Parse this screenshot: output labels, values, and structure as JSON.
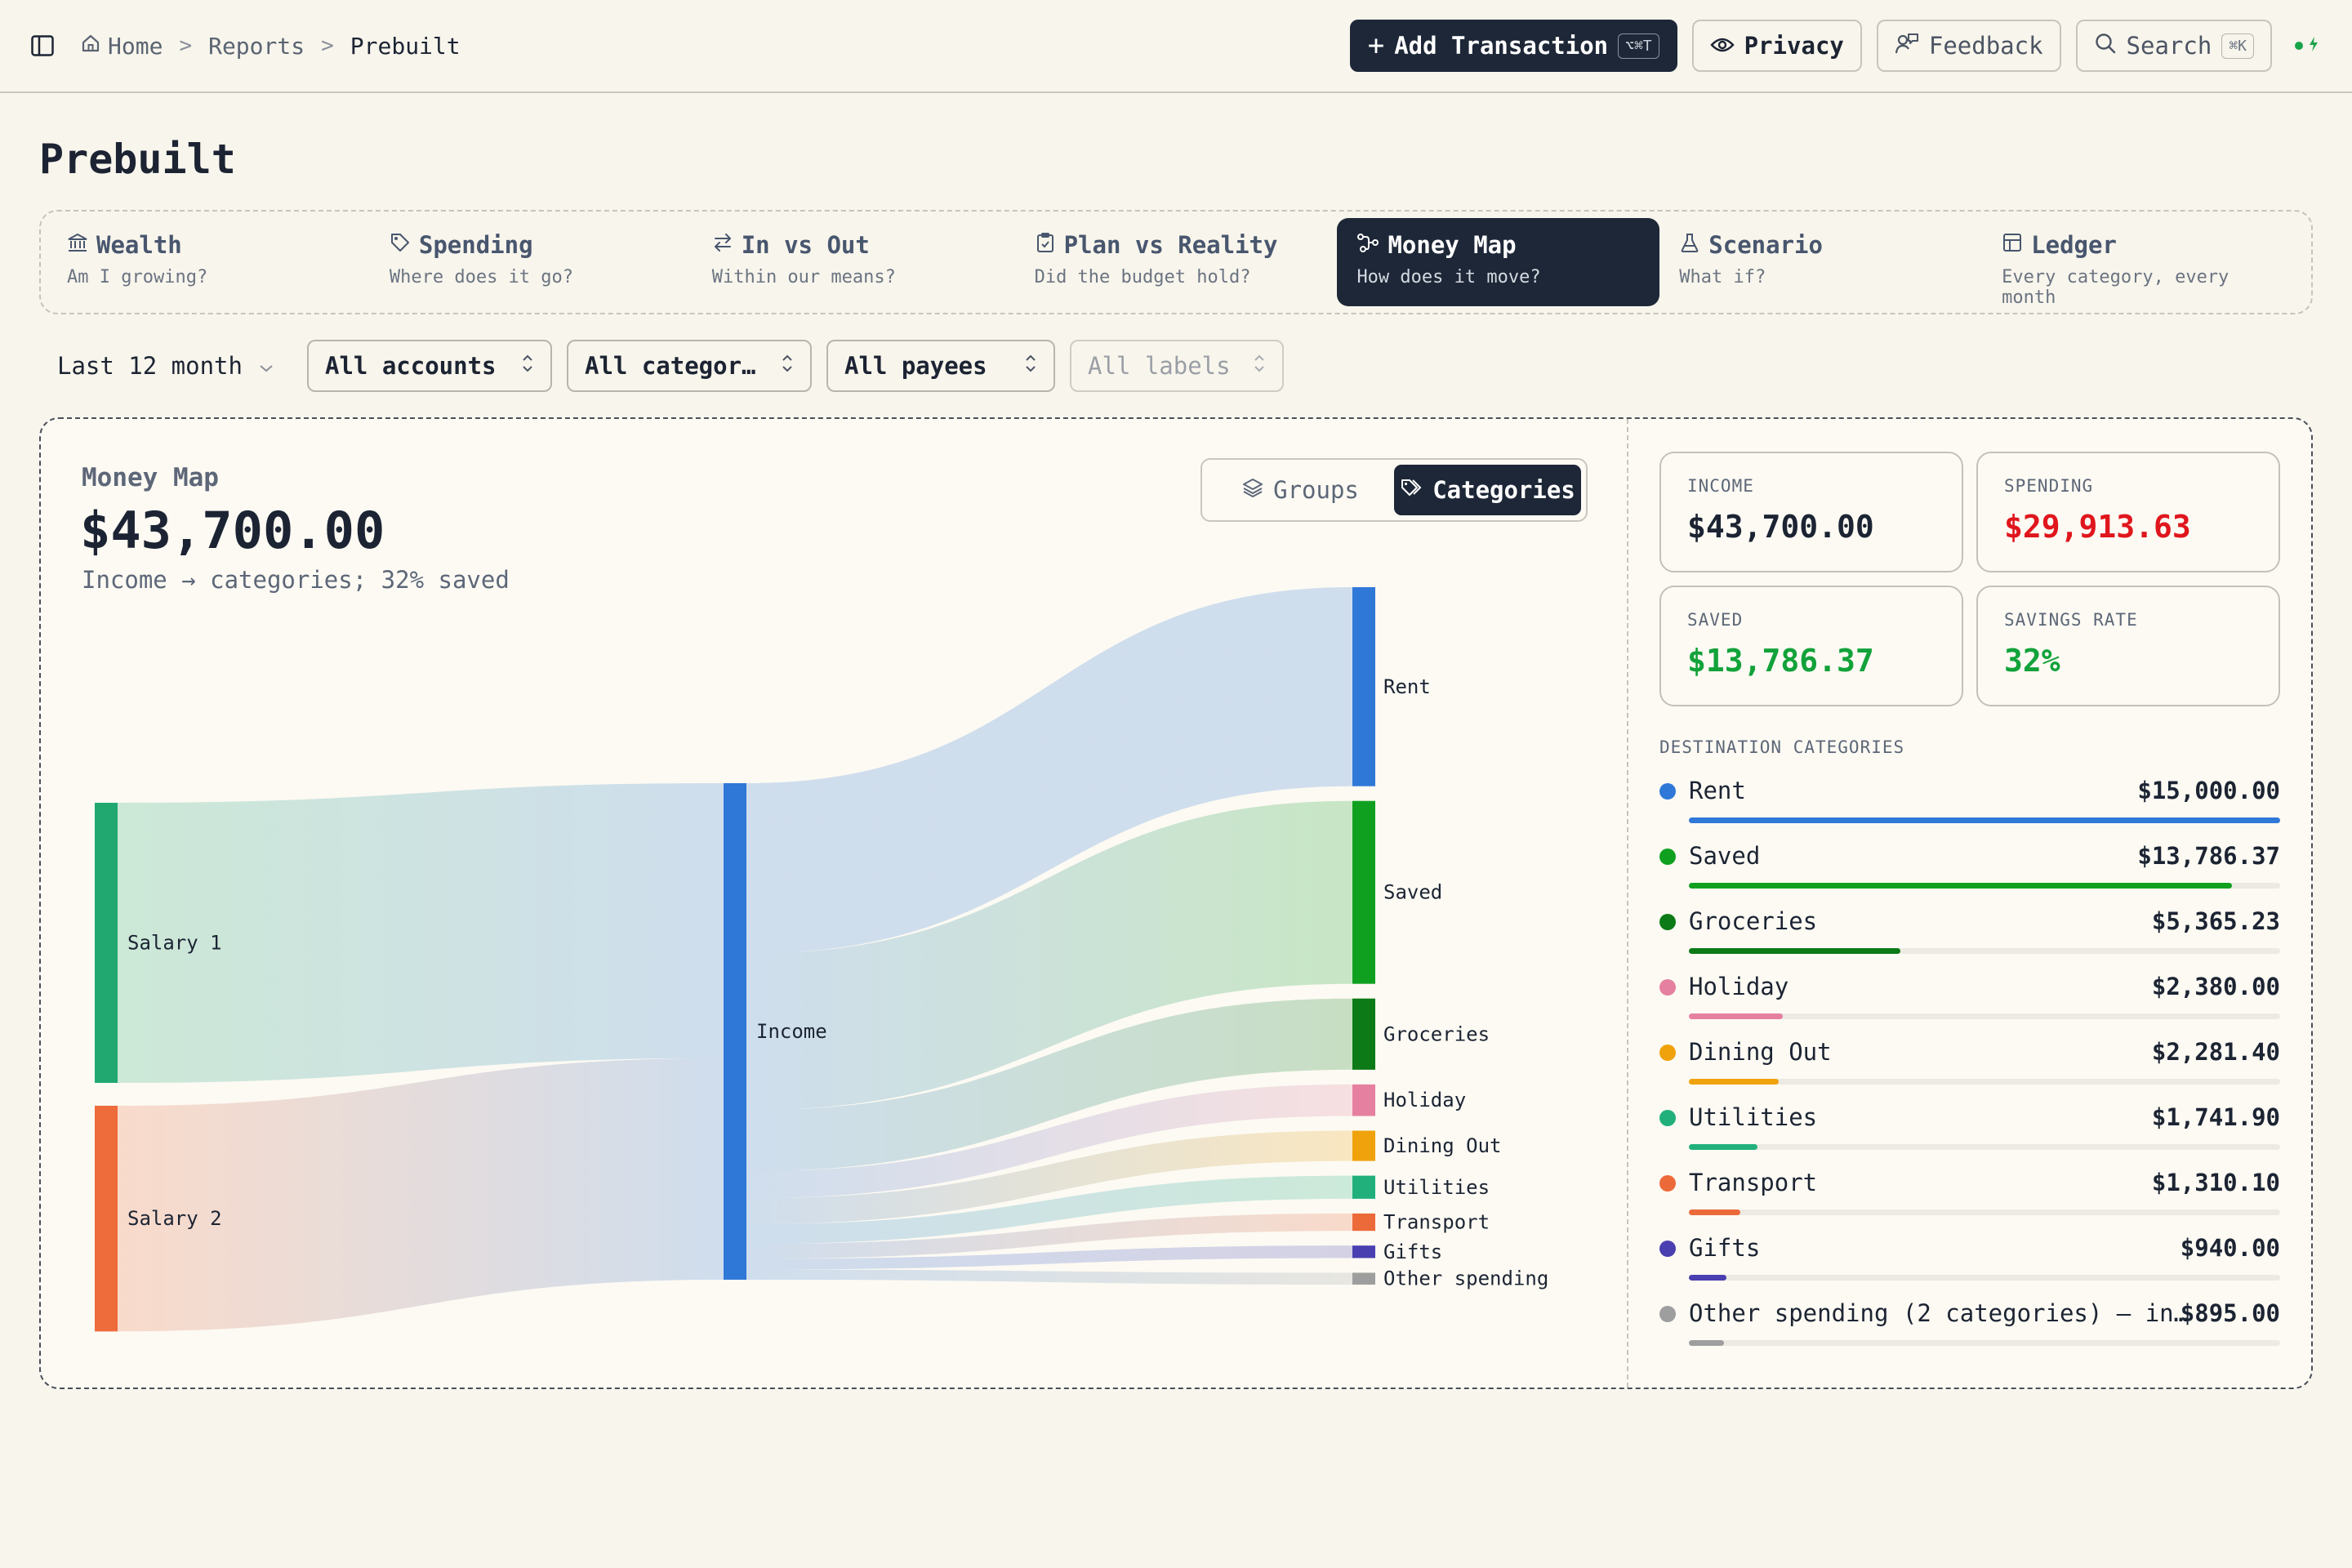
{
  "breadcrumb": {
    "home": "Home",
    "reports": "Reports",
    "current": "Prebuilt",
    "sep": ">"
  },
  "top_actions": {
    "add_transaction": "Add Transaction",
    "add_shortcut": "⌥⌘T",
    "privacy": "Privacy",
    "feedback": "Feedback",
    "search": "Search",
    "search_shortcut": "⌘K"
  },
  "page_title": "Prebuilt",
  "tabs": [
    {
      "label": "Wealth",
      "sub": "Am I growing?",
      "icon": "bank-icon"
    },
    {
      "label": "Spending",
      "sub": "Where does it go?",
      "icon": "tag-icon"
    },
    {
      "label": "In vs Out",
      "sub": "Within our means?",
      "icon": "arrows-icon"
    },
    {
      "label": "Plan vs Reality",
      "sub": "Did the budget hold?",
      "icon": "clipboard-icon"
    },
    {
      "label": "Money Map",
      "sub": "How does it move?",
      "icon": "flow-icon",
      "active": true
    },
    {
      "label": "Scenario",
      "sub": "What if?",
      "icon": "flask-icon"
    },
    {
      "label": "Ledger",
      "sub": "Every category, every month",
      "icon": "table-icon"
    }
  ],
  "filters": {
    "period": "Last 12 month",
    "accounts": "All accounts",
    "categories": "All categor…",
    "payees": "All payees",
    "labels": "All labels"
  },
  "panel": {
    "label": "Money Map",
    "total": "$43,700.00",
    "subtitle": "Income → categories; 32% saved",
    "toggle": {
      "groups": "Groups",
      "categories": "Categories"
    }
  },
  "stats": {
    "income_label": "INCOME",
    "income": "$43,700.00",
    "spending_label": "SPENDING",
    "spending": "$29,913.63",
    "saved_label": "SAVED",
    "saved": "$13,786.37",
    "rate_label": "SAVINGS RATE",
    "rate": "32%"
  },
  "destinations_heading": "DESTINATION CATEGORIES",
  "destinations": [
    {
      "name": "Rent",
      "amount": "$15,000.00",
      "fraction": 1.0,
      "color": "#2f78d8"
    },
    {
      "name": "Saved",
      "amount": "$13,786.37",
      "fraction": 0.919,
      "color": "#10a020"
    },
    {
      "name": "Groceries",
      "amount": "$5,365.23",
      "fraction": 0.358,
      "color": "#0c7a16"
    },
    {
      "name": "Holiday",
      "amount": "$2,380.00",
      "fraction": 0.159,
      "color": "#e580a0"
    },
    {
      "name": "Dining Out",
      "amount": "$2,281.40",
      "fraction": 0.152,
      "color": "#f0a20c"
    },
    {
      "name": "Utilities",
      "amount": "$1,741.90",
      "fraction": 0.116,
      "color": "#21b07c"
    },
    {
      "name": "Transport",
      "amount": "$1,310.10",
      "fraction": 0.087,
      "color": "#ec6a3a"
    },
    {
      "name": "Gifts",
      "amount": "$940.00",
      "fraction": 0.063,
      "color": "#4a3fb0"
    },
    {
      "name": "Other spending (2 categories) — in…",
      "amount": "$895.00",
      "fraction": 0.06,
      "color": "#9e9e9e"
    }
  ],
  "sankey": {
    "sources": [
      {
        "name": "Salary 1",
        "value": 24200,
        "color": "#21a870"
      },
      {
        "name": "Salary 2",
        "value": 19500,
        "color": "#ee6b3c"
      }
    ],
    "hub": {
      "name": "Income",
      "value": 43700,
      "color": "#2f78d8"
    },
    "targets": [
      {
        "name": "Rent",
        "value": 15000,
        "color": "#2f78d8"
      },
      {
        "name": "Saved",
        "value": 13786.37,
        "color": "#10a020"
      },
      {
        "name": "Groceries",
        "value": 5365.23,
        "color": "#0c7a16"
      },
      {
        "name": "Holiday",
        "value": 2380,
        "color": "#e580a0"
      },
      {
        "name": "Dining Out",
        "value": 2281.4,
        "color": "#f0a20c"
      },
      {
        "name": "Utilities",
        "value": 1741.9,
        "color": "#21b07c"
      },
      {
        "name": "Transport",
        "value": 1310.1,
        "color": "#ec6a3a"
      },
      {
        "name": "Gifts",
        "value": 940,
        "color": "#4a3fb0"
      },
      {
        "name": "Other spending",
        "value": 895,
        "color": "#9e9e9e"
      }
    ]
  }
}
